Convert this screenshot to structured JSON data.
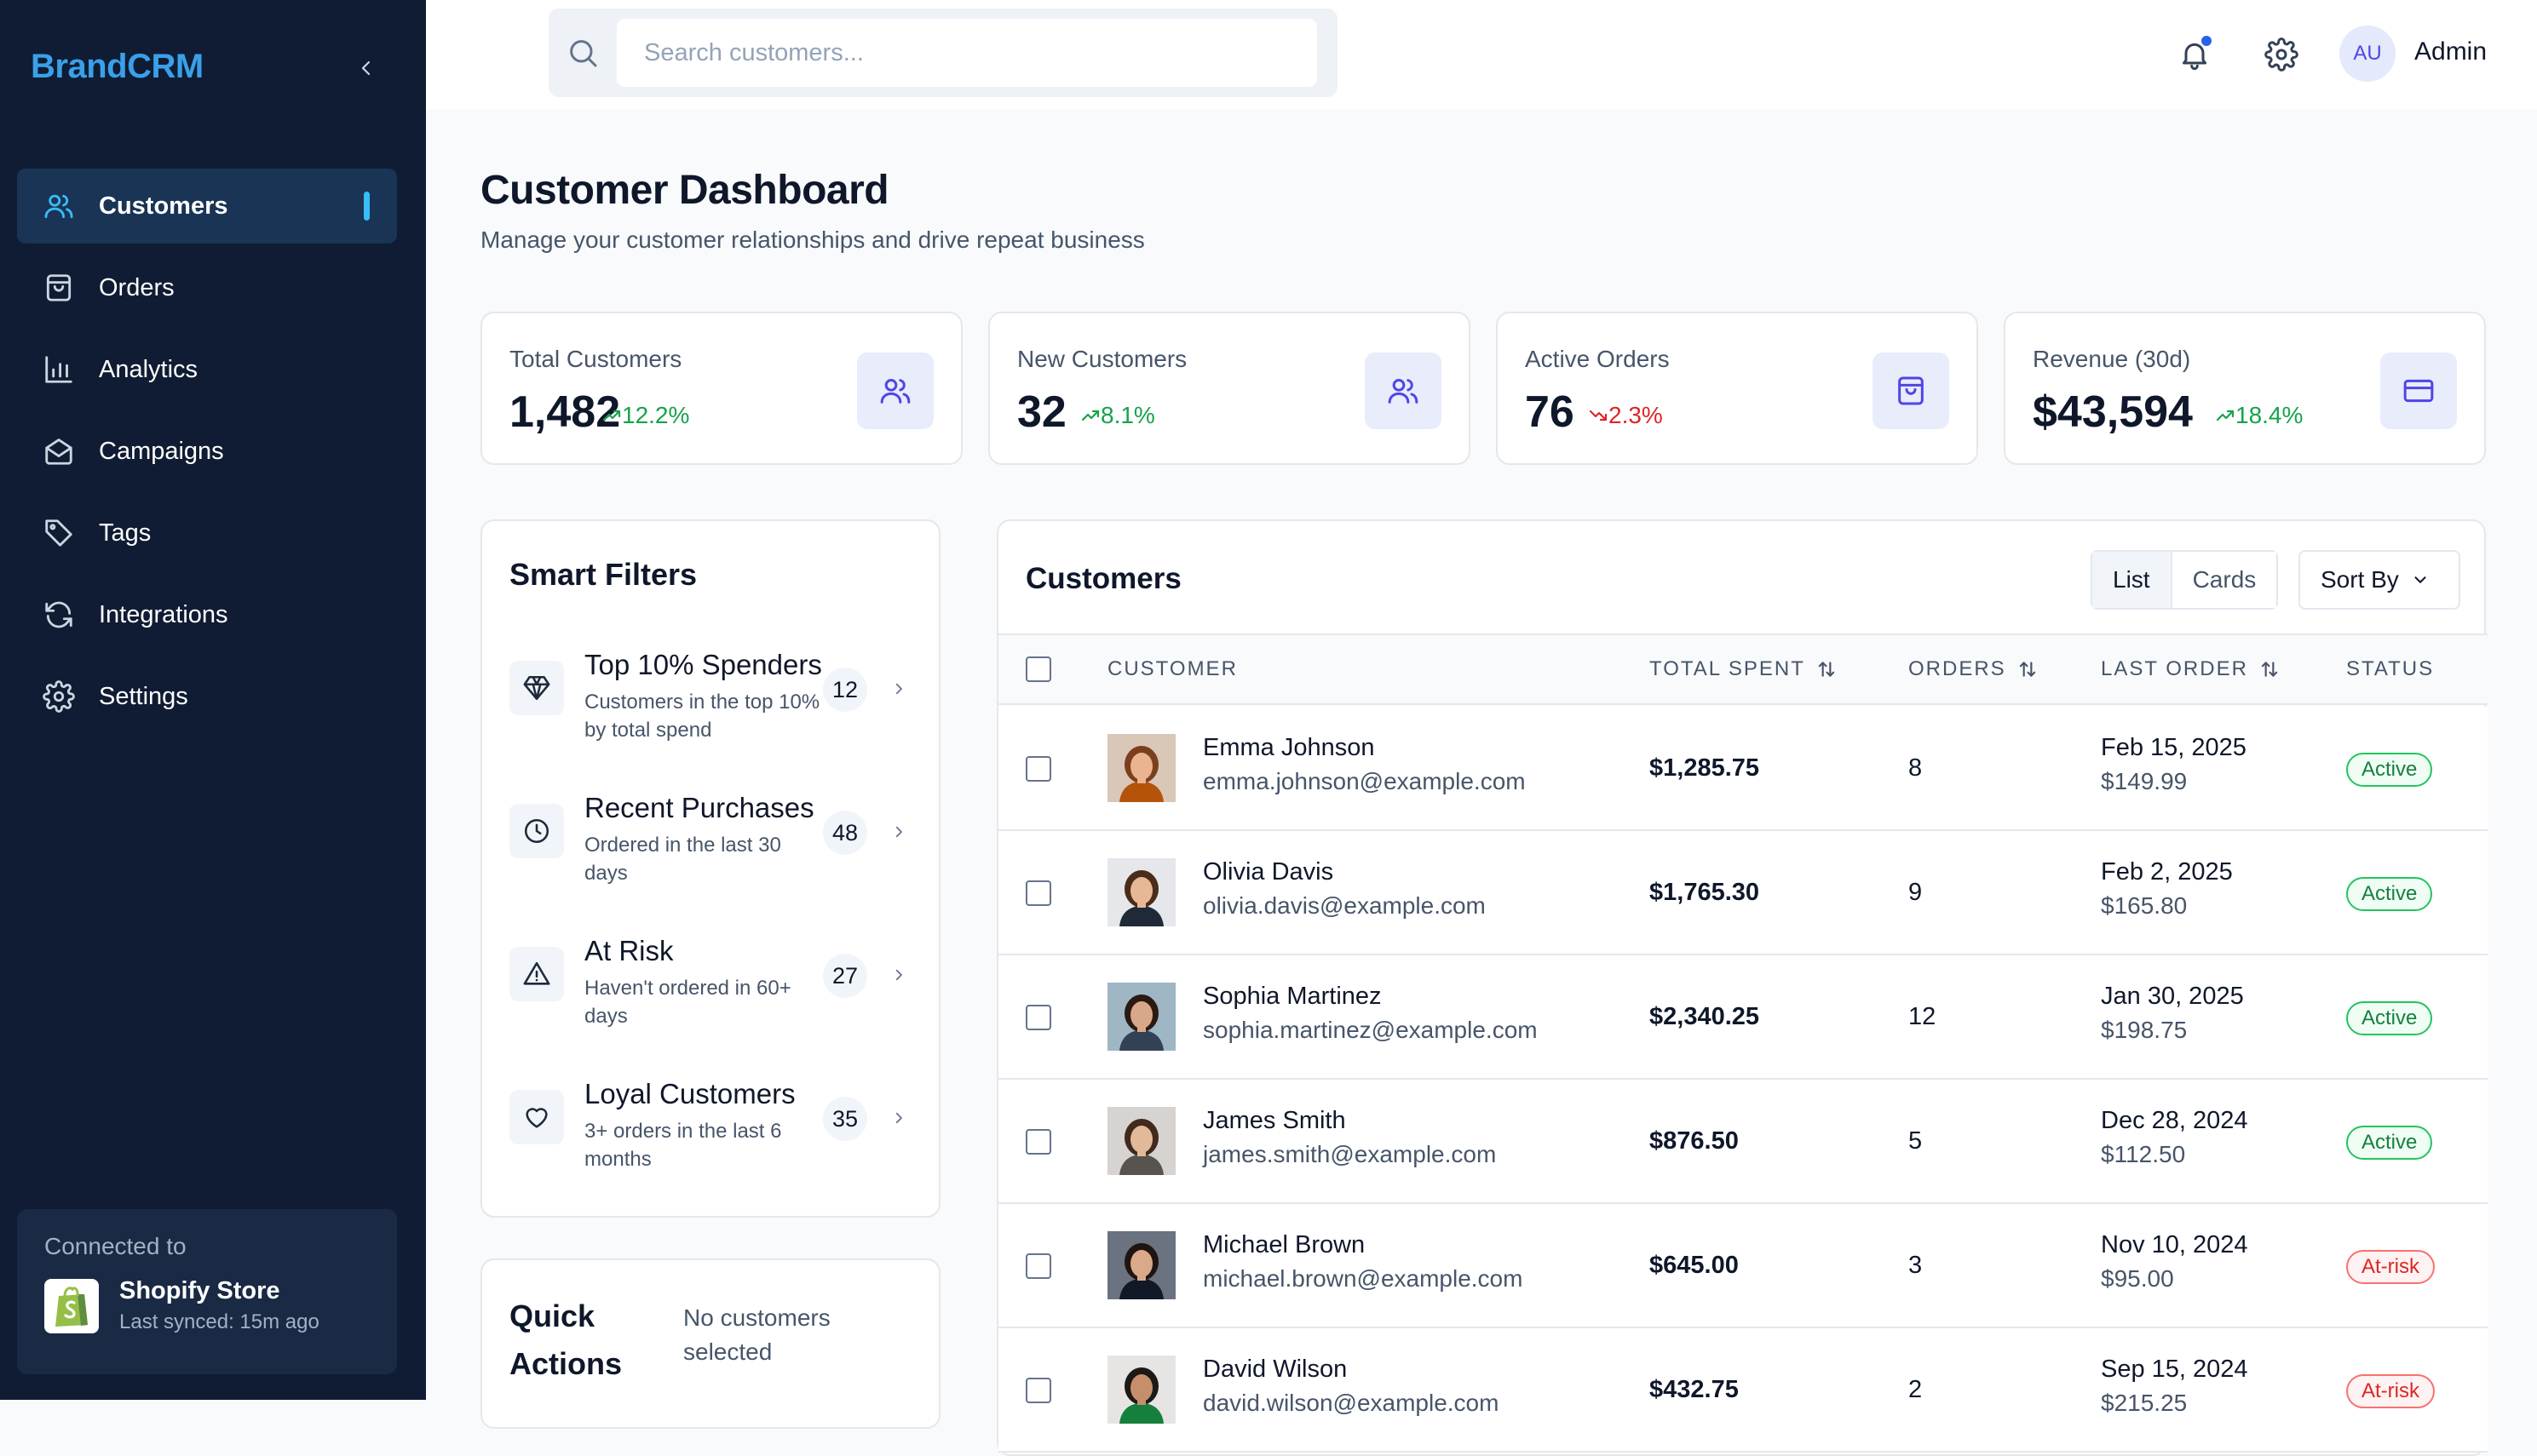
{
  "sidebar": {
    "brand": "BrandCRM",
    "items": [
      {
        "label": "Customers",
        "icon": "users-icon",
        "active": true
      },
      {
        "label": "Orders",
        "icon": "shopping-bag-icon"
      },
      {
        "label": "Analytics",
        "icon": "bar-chart-icon"
      },
      {
        "label": "Campaigns",
        "icon": "mail-icon"
      },
      {
        "label": "Tags",
        "icon": "tag-icon"
      },
      {
        "label": "Integrations",
        "icon": "refresh-icon"
      },
      {
        "label": "Settings",
        "icon": "gear-icon"
      }
    ],
    "connected": {
      "label": "Connected to",
      "store": "Shopify Store",
      "synced": "Last synced: 15m ago"
    }
  },
  "topbar": {
    "search_placeholder": "Search customers...",
    "avatar_initials": "AU",
    "user_name": "Admin"
  },
  "page": {
    "title": "Customer Dashboard",
    "subtitle": "Manage your customer relationships and drive repeat business"
  },
  "stats": [
    {
      "label": "Total Customers",
      "value": "1,482",
      "change": "12.2%",
      "trend": "up",
      "icon": "users-icon"
    },
    {
      "label": "New Customers",
      "value": "32",
      "change": "8.1%",
      "trend": "up",
      "icon": "users-icon"
    },
    {
      "label": "Active Orders",
      "value": "76",
      "change": "2.3%",
      "trend": "down",
      "icon": "shopping-bag-icon"
    },
    {
      "label": "Revenue (30d)",
      "value": "$43,594",
      "change": "18.4%",
      "trend": "up",
      "icon": "credit-card-icon"
    }
  ],
  "filters": {
    "title": "Smart Filters",
    "items": [
      {
        "title": "Top 10% Spenders",
        "desc": "Customers in the top 10% by total spend",
        "count": "12",
        "icon": "diamond-icon"
      },
      {
        "title": "Recent Purchases",
        "desc": "Ordered in the last 30 days",
        "count": "48",
        "icon": "clock-icon"
      },
      {
        "title": "At Risk",
        "desc": "Haven't ordered in 60+ days",
        "count": "27",
        "icon": "warning-icon"
      },
      {
        "title": "Loyal Customers",
        "desc": "3+ orders in the last 6 months",
        "count": "35",
        "icon": "heart-icon"
      }
    ]
  },
  "quick_actions": {
    "title": "Quick Actions",
    "note": "No customers selected"
  },
  "table": {
    "title": "Customers",
    "views": [
      "List",
      "Cards"
    ],
    "active_view": "List",
    "sort_label": "Sort By",
    "columns": {
      "customer": "CUSTOMER",
      "total_spent": "TOTAL SPENT",
      "orders": "ORDERS",
      "last_order": "LAST ORDER",
      "status": "STATUS"
    },
    "rows": [
      {
        "name": "Emma Johnson",
        "email": "emma.johnson@example.com",
        "spent": "$1,285.75",
        "orders": "8",
        "date": "Feb 15, 2025",
        "amount": "$149.99",
        "status": "Active",
        "status_type": "active",
        "skin": "#e9b48f",
        "hair": "#7b3f1e",
        "bg": "#d9c7b8",
        "shirt": "#b45309"
      },
      {
        "name": "Olivia Davis",
        "email": "olivia.davis@example.com",
        "spent": "$1,765.30",
        "orders": "9",
        "date": "Feb 2, 2025",
        "amount": "$165.80",
        "status": "Active",
        "status_type": "active",
        "skin": "#e8b896",
        "hair": "#4a2c1a",
        "bg": "#e5e7eb",
        "shirt": "#1f2937"
      },
      {
        "name": "Sophia Martinez",
        "email": "sophia.martinez@example.com",
        "spent": "$2,340.25",
        "orders": "12",
        "date": "Jan 30, 2025",
        "amount": "$198.75",
        "status": "Active",
        "status_type": "active",
        "skin": "#d8a888",
        "hair": "#2b1a12",
        "bg": "#9fb6c4",
        "shirt": "#334155"
      },
      {
        "name": "James Smith",
        "email": "james.smith@example.com",
        "spent": "$876.50",
        "orders": "5",
        "date": "Dec 28, 2024",
        "amount": "$112.50",
        "status": "Active",
        "status_type": "active",
        "skin": "#e2b999",
        "hair": "#3f2a1c",
        "bg": "#d6d3d1",
        "shirt": "#57534e"
      },
      {
        "name": "Michael Brown",
        "email": "michael.brown@example.com",
        "spent": "$645.00",
        "orders": "3",
        "date": "Nov 10, 2024",
        "amount": "$95.00",
        "status": "At-risk",
        "status_type": "risk",
        "skin": "#d9a98a",
        "hair": "#1f1510",
        "bg": "#6b7280",
        "shirt": "#111827"
      },
      {
        "name": "David Wilson",
        "email": "david.wilson@example.com",
        "spent": "$432.75",
        "orders": "2",
        "date": "Sep 15, 2024",
        "amount": "$215.25",
        "status": "At-risk",
        "status_type": "risk",
        "skin": "#c58f6c",
        "hair": "#1c1917",
        "bg": "#e7e5e4",
        "shirt": "#15803d"
      }
    ]
  },
  "colors": {
    "sidebar_bg": "#0f1c33",
    "brand": "#3aa0e8",
    "accent_indicator": "#38bdf8",
    "positive": "#16a34a",
    "negative": "#dc2626",
    "icon_tile": "#e8ecfb",
    "icon_stroke": "#4f46e5"
  }
}
